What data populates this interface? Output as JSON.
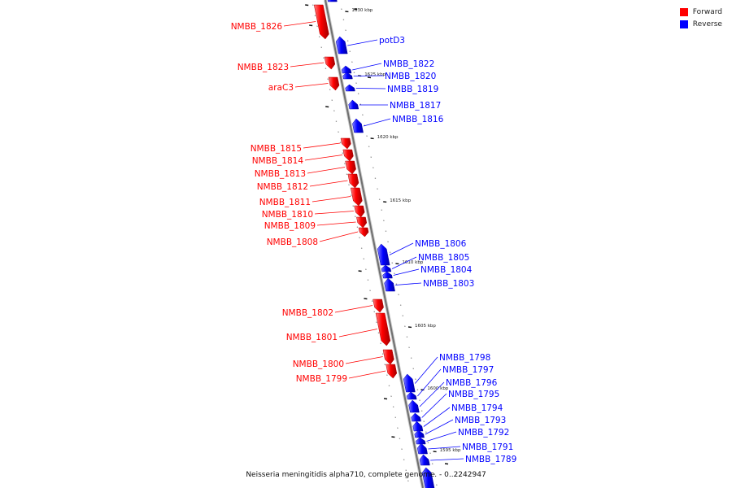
{
  "legend": {
    "forward_label": "Forward",
    "reverse_label": "Reverse",
    "forward_color": "#ff0000",
    "reverse_color": "#0000ff"
  },
  "caption": "Neisseria meningitidis alpha710, complete genome. - 0..2242947",
  "kbp_ticks": [
    "1630 kbp",
    "1625 kbp",
    "1620 kbp",
    "1615 kbp",
    "1610 kbp",
    "1605 kbp",
    "1600 kbp",
    "1595 kbp"
  ],
  "forward_genes": [
    "NMBB_1826",
    "NMBB_1823",
    "araC3",
    "NMBB_1815",
    "NMBB_1814",
    "NMBB_1813",
    "NMBB_1812",
    "NMBB_1811",
    "NMBB_1810",
    "NMBB_1809",
    "NMBB_1808",
    "NMBB_1802",
    "NMBB_1801",
    "NMBB_1800",
    "NMBB_1799"
  ],
  "reverse_genes": [
    "potD3",
    "NMBB_1822",
    "NMBB_1820",
    "NMBB_1819",
    "NMBB_1817",
    "NMBB_1816",
    "NMBB_1806",
    "NMBB_1805",
    "NMBB_1804",
    "NMBB_1803",
    "NMBB_1798",
    "NMBB_1797",
    "NMBB_1796",
    "NMBB_1795",
    "NMBB_1794",
    "NMBB_1793",
    "NMBB_1792",
    "NMBB_1791",
    "NMBB_1789"
  ]
}
